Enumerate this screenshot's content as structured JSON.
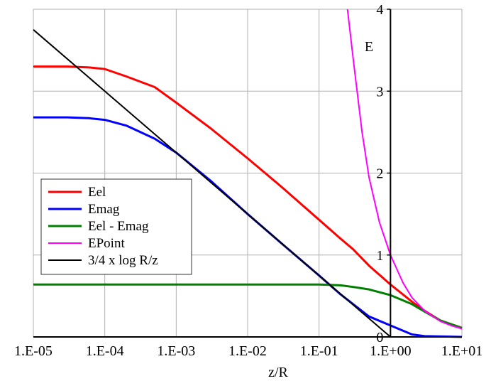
{
  "chart_data": {
    "type": "line",
    "xscale": "log",
    "xlim": [
      1e-05,
      10
    ],
    "ylim": [
      0,
      4
    ],
    "grid": true,
    "legend_position": "center-left",
    "xlabel": "z/R",
    "ylabel": "E",
    "x_ticks": [
      "1.E-05",
      "1.E-04",
      "1.E-03",
      "1.E-02",
      "1.E-01",
      "1.E+00",
      "1.E+01"
    ],
    "y_ticks": [
      "0",
      "1",
      "2",
      "3",
      "4"
    ],
    "series": [
      {
        "name": "Eel",
        "color": "#ff0000",
        "width": 3,
        "points": [
          [
            1e-05,
            3.3
          ],
          [
            3e-05,
            3.3
          ],
          [
            6e-05,
            3.29
          ],
          [
            0.0001,
            3.27
          ],
          [
            0.0002,
            3.18
          ],
          [
            0.0005,
            3.05
          ],
          [
            0.001,
            2.86
          ],
          [
            0.003,
            2.55
          ],
          [
            0.01,
            2.18
          ],
          [
            0.03,
            1.83
          ],
          [
            0.1,
            1.43
          ],
          [
            0.2,
            1.2
          ],
          [
            0.3,
            1.07
          ],
          [
            0.5,
            0.87
          ],
          [
            1,
            0.64
          ],
          [
            2,
            0.43
          ],
          [
            3,
            0.32
          ],
          [
            5,
            0.2
          ],
          [
            10,
            0.11
          ]
        ]
      },
      {
        "name": "Emag",
        "color": "#0000ff",
        "width": 3,
        "points": [
          [
            1e-05,
            2.68
          ],
          [
            3e-05,
            2.68
          ],
          [
            6e-05,
            2.67
          ],
          [
            0.0001,
            2.65
          ],
          [
            0.0002,
            2.58
          ],
          [
            0.0005,
            2.42
          ],
          [
            0.001,
            2.25
          ],
          [
            0.003,
            1.91
          ],
          [
            0.01,
            1.5
          ],
          [
            0.03,
            1.14
          ],
          [
            0.1,
            0.75
          ],
          [
            0.2,
            0.52
          ],
          [
            0.3,
            0.4
          ],
          [
            0.5,
            0.25
          ],
          [
            1,
            0.14
          ],
          [
            2,
            0.03
          ],
          [
            3,
            0.01
          ],
          [
            10,
            0
          ]
        ]
      },
      {
        "name": "Eel - Emag",
        "color": "#008000",
        "width": 3,
        "points": [
          [
            1e-05,
            0.64
          ],
          [
            0.01,
            0.64
          ],
          [
            0.1,
            0.64
          ],
          [
            0.2,
            0.63
          ],
          [
            0.3,
            0.61
          ],
          [
            0.5,
            0.58
          ],
          [
            1,
            0.51
          ],
          [
            2,
            0.4
          ],
          [
            3,
            0.31
          ],
          [
            5,
            0.2
          ],
          [
            10,
            0.11
          ]
        ]
      },
      {
        "name": "EPoint",
        "color": "#ff00ff",
        "width": 2,
        "points": [
          [
            0.25,
            4
          ],
          [
            0.3,
            3.4
          ],
          [
            0.4,
            2.5
          ],
          [
            0.5,
            1.95
          ],
          [
            0.7,
            1.4
          ],
          [
            1,
            1
          ],
          [
            1.5,
            0.66
          ],
          [
            2,
            0.48
          ],
          [
            3,
            0.32
          ],
          [
            5,
            0.19
          ],
          [
            7,
            0.14
          ],
          [
            10,
            0.1
          ]
        ]
      },
      {
        "name": "3/4 x log R/z",
        "color": "#000000",
        "width": 2,
        "points": [
          [
            1e-05,
            3.75
          ],
          [
            1,
            0
          ]
        ]
      }
    ]
  }
}
